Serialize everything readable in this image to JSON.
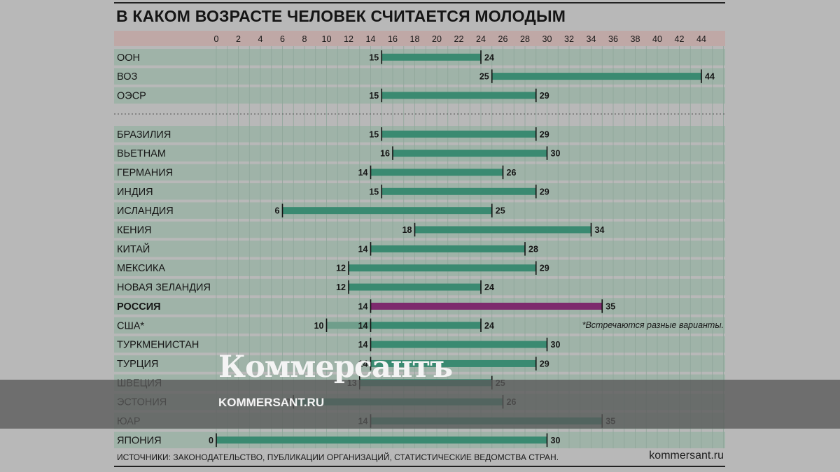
{
  "title": "В КАКОМ ВОЗРАСТЕ ЧЕЛОВЕК СЧИТАЕТСЯ МОЛОДЫМ",
  "source": "ИСТОЧНИКИ: ЗАКОНОДАТЕЛЬСТВО, ПУБЛИКАЦИИ ОРГАНИЗАЦИЙ, СТАТИСТИЧЕСКИЕ ВЕДОМСТВА СТРАН.",
  "site": "kommersant.ru",
  "note": "*Встречаются разные варианты.",
  "watermark": {
    "logo": "Коммерсантъ",
    "site": "KOMMERSANT.RU"
  },
  "colors": {
    "bar": "#3a8a71",
    "highlight": "#7d2a6d",
    "alt_bar": "#6f9e8b",
    "row": "#9fb3a8",
    "axis_band": "#bfa8a6"
  },
  "chart_data": {
    "type": "bar",
    "orientation": "horizontal-range",
    "title": "В КАКОМ ВОЗРАСТЕ ЧЕЛОВЕК СЧИТАЕТСЯ МОЛОДЫМ",
    "xlim": [
      0,
      46
    ],
    "x_ticks": [
      0,
      2,
      4,
      6,
      8,
      10,
      12,
      14,
      16,
      18,
      20,
      22,
      24,
      26,
      28,
      30,
      32,
      34,
      36,
      38,
      40,
      42,
      44
    ],
    "grid": true,
    "groups": [
      {
        "name": "organizations",
        "rows": [
          {
            "label": "ООН",
            "start": 15,
            "end": 24
          },
          {
            "label": "ВОЗ",
            "start": 25,
            "end": 44
          },
          {
            "label": "ОЭСР",
            "start": 15,
            "end": 29
          }
        ]
      },
      {
        "name": "countries",
        "rows": [
          {
            "label": "БРАЗИЛИЯ",
            "start": 15,
            "end": 29
          },
          {
            "label": "ВЬЕТНАМ",
            "start": 16,
            "end": 30
          },
          {
            "label": "ГЕРМАНИЯ",
            "start": 14,
            "end": 26
          },
          {
            "label": "ИНДИЯ",
            "start": 15,
            "end": 29
          },
          {
            "label": "ИСЛАНДИЯ",
            "start": 6,
            "end": 25
          },
          {
            "label": "КЕНИЯ",
            "start": 18,
            "end": 34
          },
          {
            "label": "КИТАЙ",
            "start": 14,
            "end": 28
          },
          {
            "label": "МЕКСИКА",
            "start": 12,
            "end": 29
          },
          {
            "label": "НОВАЯ ЗЕЛАНДИЯ",
            "start": 12,
            "end": 24
          },
          {
            "label": "РОССИЯ",
            "start": 14,
            "end": 35,
            "highlight": true
          },
          {
            "label": "США*",
            "start": 14,
            "end": 24,
            "alt_start": 10
          },
          {
            "label": "ТУРКМЕНИСТАН",
            "start": 14,
            "end": 30
          },
          {
            "label": "ТУРЦИЯ",
            "start": 14,
            "end": 29
          },
          {
            "label": "ШВЕЦИЯ",
            "start": 13,
            "end": 25
          },
          {
            "label": "ЭСТОНИЯ",
            "start": 7,
            "end": 26
          },
          {
            "label": "ЮАР",
            "start": 14,
            "end": 35
          },
          {
            "label": "ЯПОНИЯ",
            "start": 0,
            "end": 30
          }
        ]
      }
    ]
  }
}
